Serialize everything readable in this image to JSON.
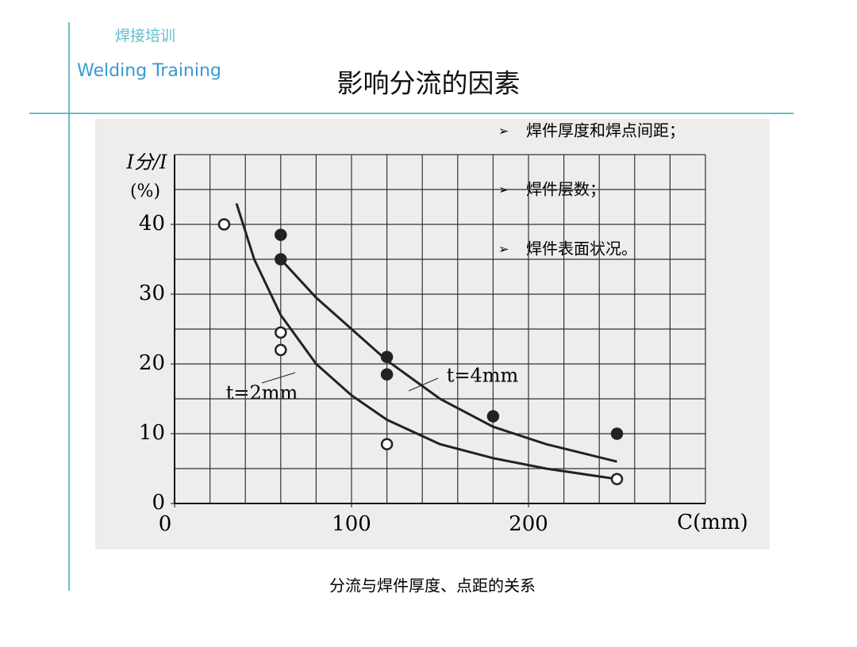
{
  "header": {
    "cn": "焊接培训",
    "en": "Welding Training",
    "title": "影响分流的因素"
  },
  "bullets": [
    "焊件厚度和焊点间距；",
    "焊件层数；",
    "焊件表面状况。"
  ],
  "caption": "分流与焊件厚度、点距的关系",
  "chart_data": {
    "type": "scatter",
    "y_label": "I分/I",
    "y_unit": "(%)",
    "x_label": "C(mm)",
    "xlim": [
      0,
      300
    ],
    "ylim": [
      0,
      50
    ],
    "xticks": [
      0,
      100,
      200
    ],
    "yticks": [
      0,
      10,
      20,
      30,
      40
    ],
    "xgrid": [
      20,
      40,
      60,
      80,
      100,
      120,
      140,
      160,
      180,
      200,
      220,
      240,
      260,
      280,
      300
    ],
    "ygrid": [
      5,
      10,
      15,
      20,
      25,
      30,
      35,
      40,
      45,
      50
    ],
    "grid": true,
    "color": "#222222",
    "series": [
      {
        "name": "t=2mm",
        "marker": "hollow",
        "x": [
          28,
          60,
          60,
          120,
          250
        ],
        "values": [
          40,
          24.5,
          22,
          8.5,
          3.5
        ]
      },
      {
        "name": "t=4mm",
        "marker": "filled",
        "x": [
          60,
          60,
          120,
          120,
          180,
          250
        ],
        "values": [
          38.5,
          35,
          21,
          18.5,
          12.5,
          10
        ]
      }
    ],
    "curves": [
      {
        "x": [
          35,
          45,
          60,
          80,
          100,
          120,
          150,
          180,
          210,
          250
        ],
        "values": [
          43,
          35,
          27,
          20,
          15.5,
          12,
          8.5,
          6.5,
          5,
          3.5
        ]
      },
      {
        "x": [
          60,
          80,
          100,
          120,
          150,
          180,
          210,
          250
        ],
        "values": [
          35,
          29.5,
          25,
          20.5,
          15,
          11,
          8.5,
          6
        ]
      }
    ]
  }
}
